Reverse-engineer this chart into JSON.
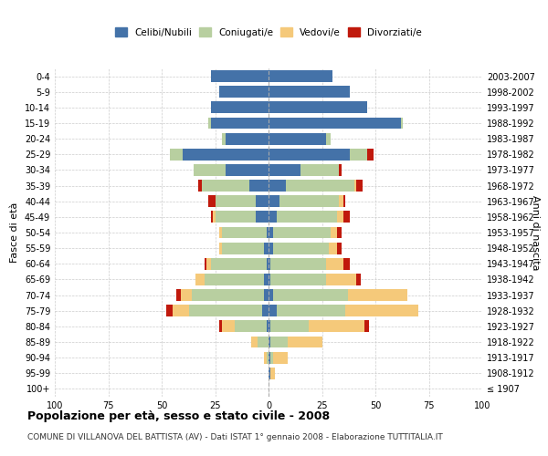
{
  "age_groups": [
    "100+",
    "95-99",
    "90-94",
    "85-89",
    "80-84",
    "75-79",
    "70-74",
    "65-69",
    "60-64",
    "55-59",
    "50-54",
    "45-49",
    "40-44",
    "35-39",
    "30-34",
    "25-29",
    "20-24",
    "15-19",
    "10-14",
    "5-9",
    "0-4"
  ],
  "birth_years": [
    "≤ 1907",
    "1908-1912",
    "1913-1917",
    "1918-1922",
    "1923-1927",
    "1928-1932",
    "1933-1937",
    "1938-1942",
    "1943-1947",
    "1948-1952",
    "1953-1957",
    "1958-1962",
    "1963-1967",
    "1968-1972",
    "1973-1977",
    "1978-1982",
    "1983-1987",
    "1988-1992",
    "1993-1997",
    "1998-2002",
    "2003-2007"
  ],
  "colors": {
    "celibi": "#4472a8",
    "coniugati": "#b8cfa0",
    "vedovi": "#f5c97a",
    "divorziati": "#c0190c"
  },
  "males": {
    "celibi": [
      0,
      0,
      0,
      0,
      1,
      3,
      2,
      2,
      1,
      2,
      1,
      6,
      6,
      9,
      20,
      40,
      20,
      27,
      27,
      23,
      27
    ],
    "coniugati": [
      0,
      0,
      1,
      5,
      15,
      34,
      34,
      28,
      26,
      20,
      21,
      19,
      19,
      22,
      15,
      6,
      2,
      1,
      0,
      0,
      0
    ],
    "vedovi": [
      0,
      0,
      1,
      3,
      6,
      8,
      5,
      4,
      2,
      1,
      1,
      1,
      0,
      0,
      0,
      0,
      0,
      0,
      0,
      0,
      0
    ],
    "divorziati": [
      0,
      0,
      0,
      0,
      1,
      3,
      2,
      0,
      1,
      0,
      0,
      1,
      3,
      2,
      0,
      0,
      0,
      0,
      0,
      0,
      0
    ]
  },
  "females": {
    "celibi": [
      0,
      1,
      1,
      1,
      1,
      4,
      2,
      1,
      1,
      2,
      2,
      4,
      5,
      8,
      15,
      38,
      27,
      62,
      46,
      38,
      30
    ],
    "coniugati": [
      0,
      0,
      1,
      8,
      18,
      32,
      35,
      26,
      26,
      26,
      27,
      28,
      28,
      32,
      18,
      8,
      2,
      1,
      0,
      0,
      0
    ],
    "vedovi": [
      0,
      2,
      7,
      16,
      26,
      34,
      28,
      14,
      8,
      4,
      3,
      3,
      2,
      1,
      0,
      0,
      0,
      0,
      0,
      0,
      0
    ],
    "divorziati": [
      0,
      0,
      0,
      0,
      2,
      0,
      0,
      2,
      3,
      2,
      2,
      3,
      1,
      3,
      1,
      3,
      0,
      0,
      0,
      0,
      0
    ]
  },
  "title": "Popolazione per età, sesso e stato civile - 2008",
  "subtitle": "COMUNE DI VILLANOVA DEL BATTISTA (AV) - Dati ISTAT 1° gennaio 2008 - Elaborazione TUTTITALIA.IT",
  "ylabel_left": "Fasce di età",
  "ylabel_right": "Anni di nascita",
  "legend_labels": [
    "Celibi/Nubili",
    "Coniugati/e",
    "Vedovi/e",
    "Divorziati/e"
  ],
  "xlim": 100,
  "background_color": "#ffffff",
  "grid_color": "#cccccc"
}
